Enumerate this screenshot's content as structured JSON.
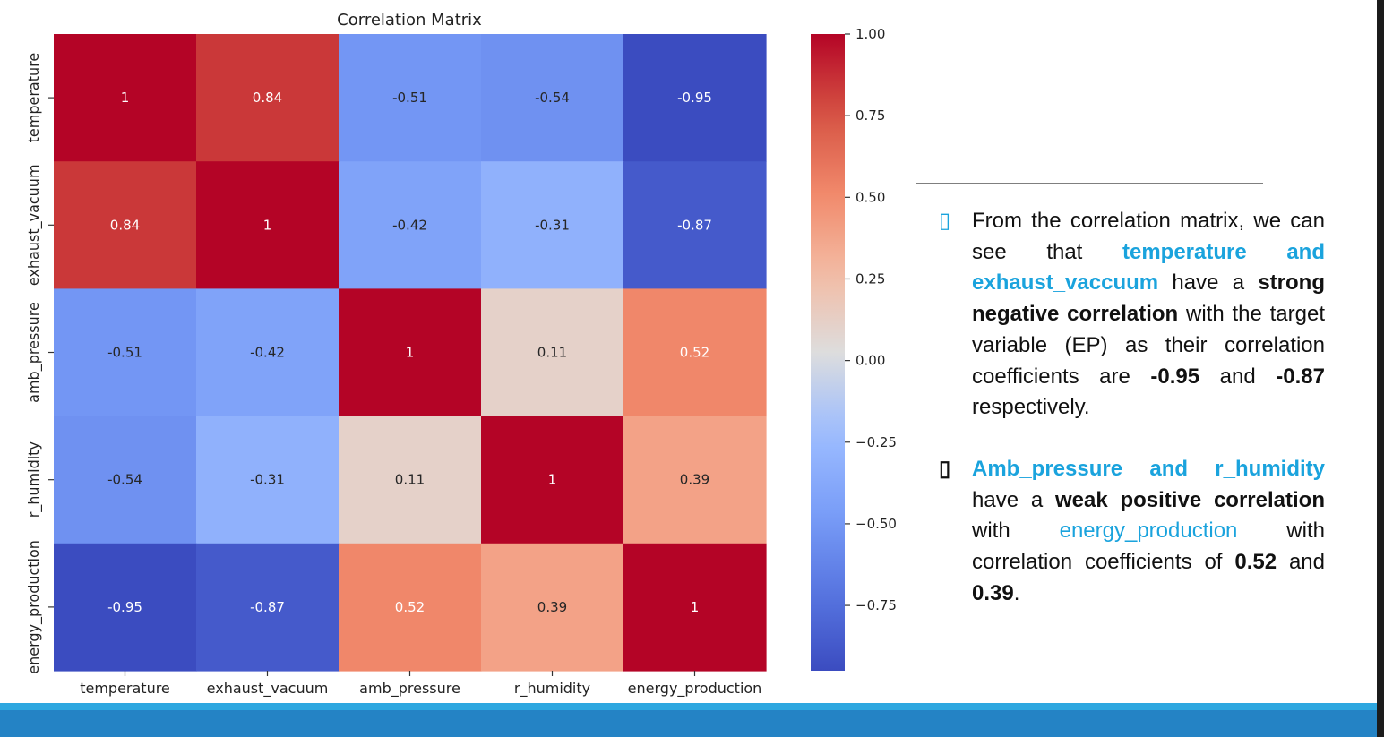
{
  "chart_data": {
    "type": "heatmap",
    "title": "Correlation Matrix",
    "labels": [
      "temperature",
      "exhaust_vacuum",
      "amb_pressure",
      "r_humidity",
      "energy_production"
    ],
    "matrix": [
      [
        1,
        0.84,
        -0.51,
        -0.54,
        -0.95
      ],
      [
        0.84,
        1,
        -0.42,
        -0.31,
        -0.87
      ],
      [
        -0.51,
        -0.42,
        1,
        0.11,
        0.52
      ],
      [
        -0.54,
        -0.31,
        0.11,
        1,
        0.39
      ],
      [
        -0.95,
        -0.87,
        0.52,
        0.39,
        1
      ]
    ],
    "colormap": "coolwarm",
    "colorbar": {
      "range": [
        -0.95,
        1.0
      ],
      "ticks": [
        1.0,
        0.75,
        0.5,
        0.25,
        0.0,
        -0.25,
        -0.5,
        -0.75
      ],
      "tick_labels": [
        "1.00",
        "0.75",
        "0.50",
        "0.25",
        "0.00",
        "−0.25",
        "−0.50",
        "−0.75"
      ]
    }
  },
  "colors": {
    "footer_band": "#2483c5",
    "footer_line": "#2ea7e0",
    "highlight_text": "#1aa3dd",
    "divider": "#7f7f7f"
  },
  "notes": {
    "bullet1": {
      "icon": "square-bullet-icon",
      "marker": "▯",
      "p1": "From the correlation matrix, we can see that ",
      "hl1": "temperature and exhaust_vaccuum",
      "p2": " have a ",
      "b1": "strong negative correlation",
      "p3": " with the target variable (EP) as their correlation coefficients are ",
      "b2": "-0.95",
      "p4": " and ",
      "b3": "-0.87",
      "p5": " respectively."
    },
    "bullet2": {
      "icon": "square-bullet-icon",
      "marker": "▯",
      "hl1": "Amb_pressure and r_humidity",
      "p1": " have a ",
      "b1": "weak positive correlation",
      "p2": " with ",
      "hl2": "energy_production",
      "p3": " with correlation coefficients of ",
      "b2": "0.52",
      "p4": " and ",
      "b3": "0.39",
      "p5": "."
    }
  }
}
